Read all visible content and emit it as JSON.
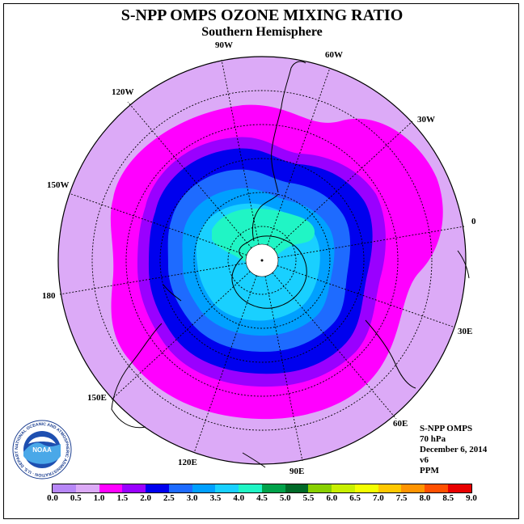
{
  "title": "S-NPP OMPS OZONE MIXING RATIO",
  "subtitle": "Southern Hemisphere",
  "longitude_labels": {
    "w90": "90W",
    "w60": "60W",
    "w30": "30W",
    "lon0": "0",
    "e30": "30E",
    "e60": "60E",
    "e90": "90E",
    "e120": "120E",
    "e150": "150E",
    "lon180": "180",
    "w150": "150W",
    "w120": "120W"
  },
  "info": {
    "instrument": "S-NPP OMPS",
    "pressure_level": "70 hPa",
    "date": "December 6, 2014",
    "version": "v6",
    "units": "PPM"
  },
  "logo": {
    "name": "NOAA",
    "ring_text": "NATIONAL OCEANIC AND ATMOSPHERIC ADMINISTRATION · U.S. DEPARTMENT OF COMMERCE"
  },
  "colorbar": {
    "ticks": [
      "0.0",
      "0.5",
      "1.0",
      "1.5",
      "2.0",
      "2.5",
      "3.0",
      "3.5",
      "4.0",
      "4.5",
      "5.0",
      "5.5",
      "6.0",
      "6.5",
      "7.0",
      "7.5",
      "8.0",
      "8.5",
      "9.0"
    ],
    "colors": [
      "#b787f7",
      "#dcaaf7",
      "#ff00ff",
      "#9a00ff",
      "#0000ee",
      "#1e6bff",
      "#00a0ff",
      "#19d0ff",
      "#20f5c5",
      "#00a24a",
      "#006a28",
      "#88d000",
      "#c8ef00",
      "#f3ff00",
      "#ffc800",
      "#ff9400",
      "#ff5000",
      "#e80000",
      "#8a5a3a"
    ]
  },
  "map": {
    "projection": "south-polar-stereographic",
    "contour_colors": {
      "lt_1_0": "#dcaaf7",
      "c1_0_1_5": "#ff00ff",
      "c1_5_2_0": "#9a00ff",
      "c2_0_2_5": "#0000ee",
      "c2_5_3_0": "#1e6bff",
      "c3_0_3_5": "#00a0ff",
      "c3_5_4_0": "#19d0ff",
      "c4_0_4_5": "#20f5c5",
      "missing": "#ffffff"
    }
  }
}
